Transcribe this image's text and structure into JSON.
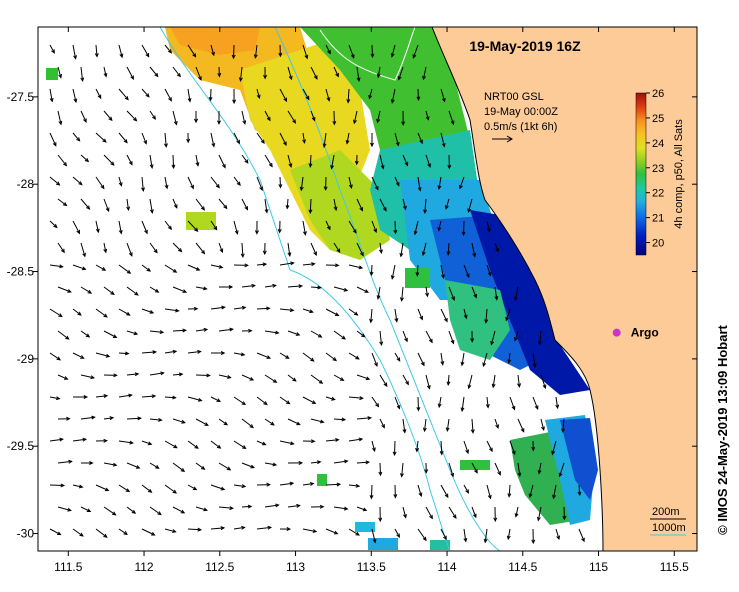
{
  "map": {
    "title": "19-May-2019 16Z",
    "lon_range": [
      111.3,
      115.65
    ],
    "lat_range": [
      -30.1,
      -27.1
    ],
    "x_ticks": [
      {
        "value": 111.5,
        "label": "111.5"
      },
      {
        "value": 112,
        "label": "112"
      },
      {
        "value": 112.5,
        "label": "112.5"
      },
      {
        "value": 113,
        "label": "113"
      },
      {
        "value": 113.5,
        "label": "113.5"
      },
      {
        "value": 114,
        "label": "114"
      },
      {
        "value": 114.5,
        "label": "114.5"
      },
      {
        "value": 115,
        "label": "115"
      },
      {
        "value": 115.5,
        "label": "115.5"
      }
    ],
    "y_ticks": [
      {
        "value": -27.5,
        "label": "-27.5"
      },
      {
        "value": -28,
        "label": "-28"
      },
      {
        "value": -28.5,
        "label": "-28.5"
      },
      {
        "value": -29,
        "label": "-29"
      },
      {
        "value": -29.5,
        "label": "-29.5"
      },
      {
        "value": -30,
        "label": "-30"
      }
    ],
    "current_legend": {
      "line1": "NRT00 GSL",
      "line2": "19-May 00:00Z",
      "line3": "0.5m/s (1kt 6h)"
    },
    "colorbar": {
      "label": "4h comp, p50, All Sats",
      "min": 19.5,
      "max": 26,
      "ticks": [
        "20",
        "21",
        "22",
        "23",
        "24",
        "25",
        "26"
      ]
    },
    "argo": {
      "label": "Argo",
      "lon": 115.12,
      "lat": -28.85,
      "color": "#cc33cc"
    },
    "isobaths": {
      "label_200": "200m",
      "label_1000": "1000m"
    },
    "credit": "© IMOS 24-May-2019 13:09 Hobart",
    "colors": {
      "land": "#fdcb98",
      "isobath": "#40c8e8",
      "current_arrow": "#000000"
    }
  }
}
